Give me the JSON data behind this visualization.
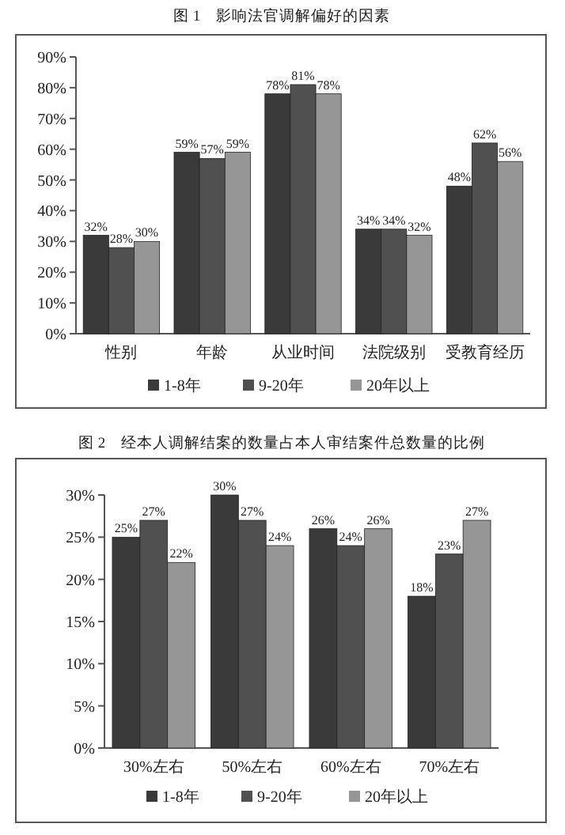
{
  "chart_data": [
    {
      "type": "bar",
      "title": "图 1　影响法官调解偏好的因素",
      "categories": [
        "性别",
        "年龄",
        "从业时间",
        "法院级别",
        "受教育经历"
      ],
      "series": [
        {
          "name": "1-8年",
          "color": "#3a3a3a",
          "values": [
            32,
            59,
            78,
            34,
            48
          ],
          "value_labels": [
            "32%",
            "59%",
            "78%",
            "34%",
            "48%"
          ]
        },
        {
          "name": "9-20年",
          "color": "#505050",
          "values": [
            28,
            57,
            81,
            34,
            62
          ],
          "value_labels": [
            "28%",
            "57%",
            "81%",
            "34%",
            "62%"
          ]
        },
        {
          "name": "20年以上",
          "color": "#969696",
          "values": [
            30,
            59,
            78,
            32,
            56
          ],
          "value_labels": [
            "30%",
            "59%",
            "78%",
            "32%",
            "56%"
          ]
        }
      ],
      "ylim": [
        0,
        90
      ],
      "yticks": [
        {
          "value": 0,
          "label": "0%"
        },
        {
          "value": 10,
          "label": "10%"
        },
        {
          "value": 20,
          "label": "20%"
        },
        {
          "value": 30,
          "label": "30%"
        },
        {
          "value": 40,
          "label": "40%"
        },
        {
          "value": 50,
          "label": "50%"
        },
        {
          "value": 60,
          "label": "60%"
        },
        {
          "value": 70,
          "label": "70%"
        },
        {
          "value": 80,
          "label": "80%"
        },
        {
          "value": 90,
          "label": "90%"
        }
      ],
      "legend": "bottom"
    },
    {
      "type": "bar",
      "title": "图 2　经本人调解结案的数量占本人审结案件总数量的比例",
      "categories": [
        "30%左右",
        "50%左右",
        "60%左右",
        "70%左右"
      ],
      "series": [
        {
          "name": "1-8年",
          "color": "#3a3a3a",
          "values": [
            25,
            30,
            26,
            18
          ],
          "value_labels": [
            "25%",
            "30%",
            "26%",
            "18%"
          ]
        },
        {
          "name": "9-20年",
          "color": "#505050",
          "values": [
            27,
            27,
            24,
            23
          ],
          "value_labels": [
            "27%",
            "27%",
            "24%",
            "23%"
          ]
        },
        {
          "name": "20年以上",
          "color": "#969696",
          "values": [
            22,
            24,
            26,
            27
          ],
          "value_labels": [
            "22%",
            "24%",
            "26%",
            "27%"
          ]
        }
      ],
      "ylim": [
        0,
        30
      ],
      "yticks": [
        {
          "value": 0,
          "label": "0%"
        },
        {
          "value": 5,
          "label": "5%"
        },
        {
          "value": 10,
          "label": "10%"
        },
        {
          "value": 15,
          "label": "15%"
        },
        {
          "value": 20,
          "label": "20%"
        },
        {
          "value": 25,
          "label": "25%"
        },
        {
          "value": 30,
          "label": "30%"
        }
      ],
      "legend": "bottom"
    }
  ]
}
